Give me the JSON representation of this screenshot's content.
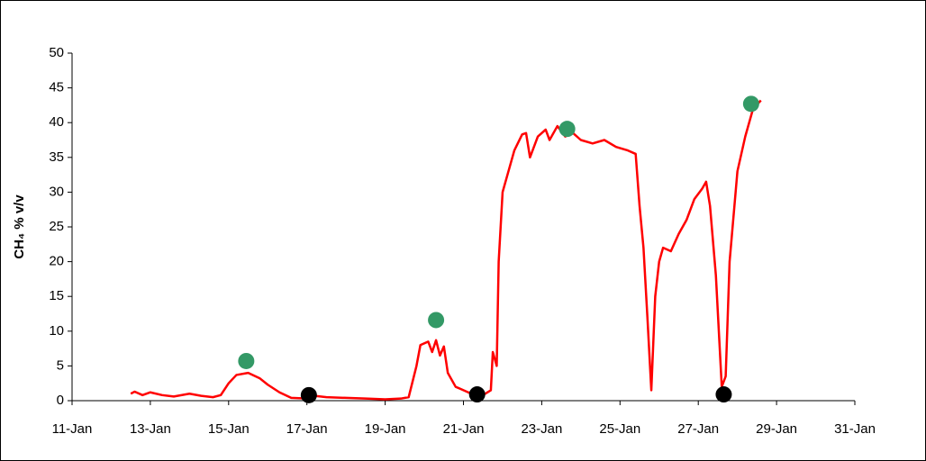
{
  "chart_data": {
    "type": "line",
    "y_label": "CH₄ % v/v",
    "xlim": [
      11,
      31
    ],
    "xticks": [
      {
        "value": 11,
        "label": "11-Jan"
      },
      {
        "value": 13,
        "label": "13-Jan"
      },
      {
        "value": 15,
        "label": "15-Jan"
      },
      {
        "value": 17,
        "label": "17-Jan"
      },
      {
        "value": 19,
        "label": "19-Jan"
      },
      {
        "value": 21,
        "label": "21-Jan"
      },
      {
        "value": 23,
        "label": "23-Jan"
      },
      {
        "value": 25,
        "label": "25-Jan"
      },
      {
        "value": 27,
        "label": "27-Jan"
      },
      {
        "value": 29,
        "label": "29-Jan"
      },
      {
        "value": 31,
        "label": "31-Jan"
      }
    ],
    "ylim": [
      0,
      50
    ],
    "yticks": [
      0,
      5,
      10,
      15,
      20,
      25,
      30,
      35,
      40,
      45,
      50
    ],
    "grid": false,
    "series": [
      {
        "type": "line",
        "color": "#ff0000",
        "x": [
          12.5,
          12.6,
          12.8,
          13.0,
          13.3,
          13.6,
          14.0,
          14.3,
          14.6,
          14.8,
          15.0,
          15.2,
          15.5,
          15.8,
          16.0,
          16.3,
          16.6,
          17.0,
          17.2,
          17.5,
          18.0,
          18.5,
          19.0,
          19.4,
          19.6,
          19.8,
          19.9,
          20.1,
          20.2,
          20.3,
          20.4,
          20.5,
          20.6,
          20.8,
          21.0,
          21.2,
          21.5,
          21.7,
          21.75,
          21.85,
          21.9,
          22.0,
          22.1,
          22.3,
          22.5,
          22.6,
          22.7,
          22.9,
          23.1,
          23.2,
          23.4,
          23.6,
          23.8,
          24.0,
          24.3,
          24.6,
          24.9,
          25.2,
          25.4,
          25.5,
          25.6,
          25.7,
          25.8,
          25.9,
          26.0,
          26.1,
          26.3,
          26.5,
          26.7,
          26.9,
          27.1,
          27.2,
          27.3,
          27.45,
          27.6,
          27.7,
          27.8,
          28.0,
          28.2,
          28.4,
          28.6
        ],
        "values": [
          1.0,
          1.3,
          0.8,
          1.2,
          0.8,
          0.6,
          1.0,
          0.7,
          0.5,
          0.8,
          2.5,
          3.7,
          4.0,
          3.2,
          2.3,
          1.2,
          0.4,
          0.3,
          0.7,
          0.5,
          0.4,
          0.3,
          0.2,
          0.3,
          0.5,
          5,
          8,
          8.5,
          7,
          8.7,
          6.5,
          7.8,
          4,
          2,
          1.5,
          1.0,
          0.8,
          1.5,
          7,
          5,
          20,
          30,
          32,
          36,
          38.3,
          38.5,
          35,
          38,
          39,
          37.5,
          39.5,
          38,
          38.5,
          37.5,
          37,
          37.5,
          36.5,
          36,
          35.5,
          28,
          22,
          12,
          1.5,
          15,
          20,
          22,
          21.5,
          24,
          26,
          29,
          30.5,
          31.5,
          28,
          18,
          2,
          3.5,
          20,
          33,
          38,
          42,
          43.2
        ]
      },
      {
        "type": "scatter",
        "color": "#339966",
        "x": [
          15.45,
          20.3,
          23.65,
          28.35
        ],
        "values": [
          5.7,
          11.6,
          39.1,
          42.7
        ]
      },
      {
        "type": "scatter",
        "color": "#000000",
        "x": [
          17.05,
          21.35,
          27.65
        ],
        "values": [
          0.8,
          0.9,
          0.9
        ]
      }
    ]
  }
}
